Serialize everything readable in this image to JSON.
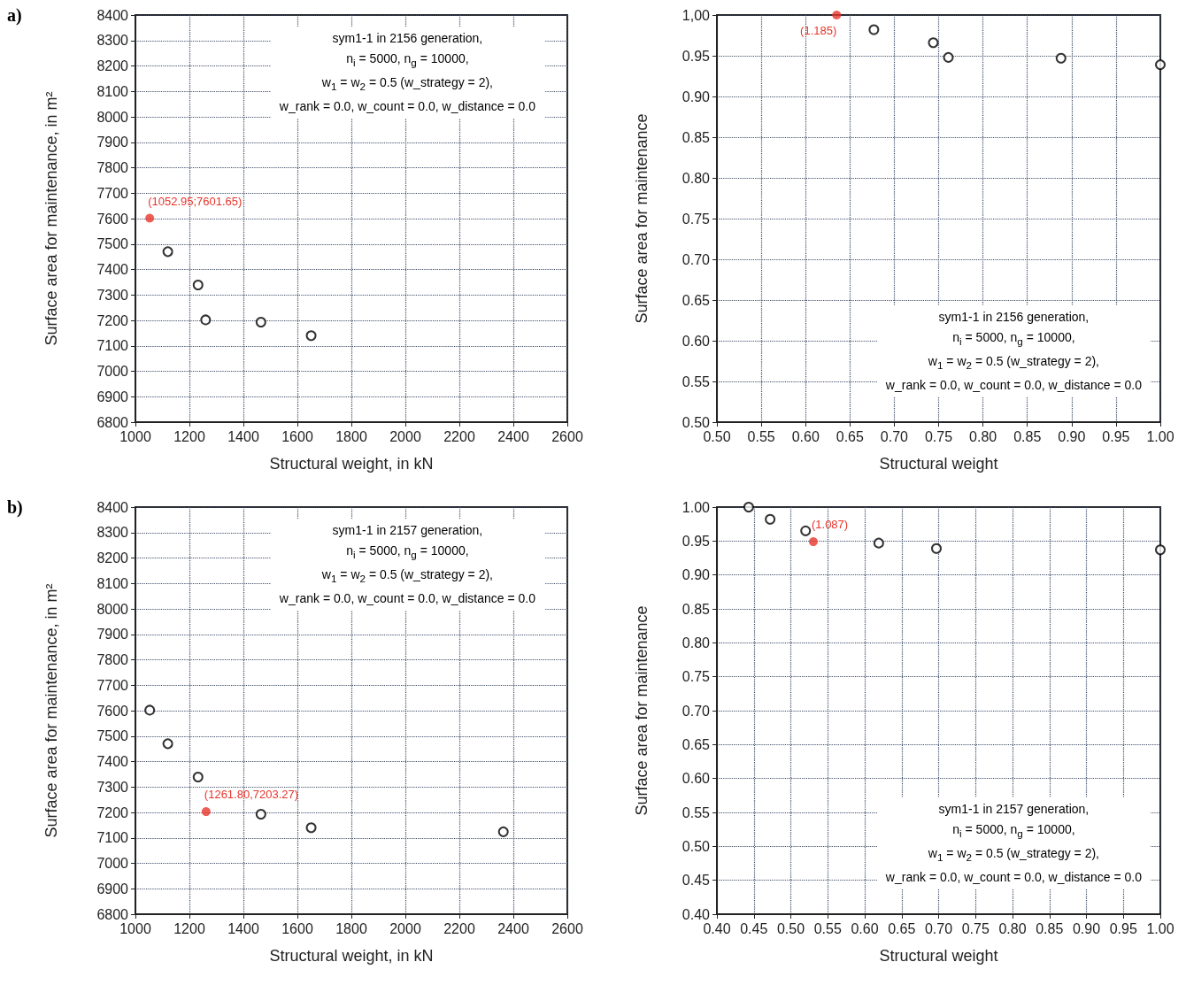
{
  "chart_data": [
    {
      "type": "scatter",
      "xlabel": "Structural weight, in kN",
      "ylabel": "Surface area for maintenance, in m²",
      "grid": true,
      "marker": "circle",
      "annotations": [
        "a)",
        "sym1-1 in 2156 generation,\nn$_{i}$ = 5000, n$_{g}$ = 10000,\nw$_{1}$ = w$_{2}$ = 0.5 (w_strategy = 2),\nw_rank = 0.0, w_count = 0.0, w_distance = 0.0",
        {
          "text": "(1052.95;7601.65)",
          "x": 1052.95,
          "y": 7601.65
        }
      ],
      "series": [
        {
          "color": "#000000",
          "x": [
            1120,
            1232,
            1260,
            1465,
            1651
          ],
          "values": [
            7470,
            7339,
            7202,
            7193,
            7140
          ]
        },
        {
          "color": "#e8342a",
          "x": [
            1052.95
          ],
          "values": [
            7601.65
          ]
        }
      ],
      "xlim": [
        1000,
        2600
      ],
      "xticks": [
        1000,
        1200,
        1400,
        1600,
        1800,
        2000,
        2200,
        2400,
        2600
      ],
      "ylim": [
        6800,
        8400
      ],
      "yticks": [
        6800,
        6900,
        7000,
        7100,
        7200,
        7300,
        7400,
        7500,
        7600,
        7700,
        7800,
        7900,
        8000,
        8100,
        8200,
        8300,
        8400
      ]
    },
    {
      "type": "scatter",
      "xlabel": "Structural weight",
      "ylabel": "Surface area for maintenance",
      "grid": true,
      "marker": "circle",
      "annotations": [
        "sym1-1 in 2156 generation,\nn$_{i}$ = 5000, n$_{g}$ = 10000,\nw$_{1}$ = w$_{2}$ = 0.5 (w_strategy = 2),\nw_rank = 0.0, w_count = 0.0, w_distance = 0.0",
        {
          "text": "(1.185)",
          "x": 0.635,
          "y": 1.0
        }
      ],
      "series": [
        {
          "color": "#000000",
          "x": [
            0.677,
            0.744,
            0.761,
            0.888,
            1.0
          ],
          "values": [
            0.982,
            0.966,
            0.948,
            0.947,
            0.939
          ]
        },
        {
          "color": "#e8342a",
          "x": [
            0.635
          ],
          "values": [
            1.0
          ]
        }
      ],
      "xlim": [
        0.5,
        1.0
      ],
      "xticks": [
        {
          "value": 0.5,
          "label": "0.50"
        },
        {
          "value": 0.55,
          "label": "0.55"
        },
        {
          "value": 0.6,
          "label": "0.60"
        },
        {
          "value": 0.65,
          "label": "0.65"
        },
        {
          "value": 0.7,
          "label": "0.70"
        },
        {
          "value": 0.75,
          "label": "0.75"
        },
        {
          "value": 0.8,
          "label": "0.80"
        },
        {
          "value": 0.85,
          "label": "0.85"
        },
        {
          "value": 0.9,
          "label": "0.90"
        },
        {
          "value": 0.95,
          "label": "0.95"
        },
        {
          "value": 1.0,
          "label": "1.00"
        }
      ],
      "ylim": [
        0.5,
        1.0
      ],
      "yticks": [
        {
          "value": 0.5,
          "label": "0.50"
        },
        {
          "value": 0.55,
          "label": "0.55"
        },
        {
          "value": 0.6,
          "label": "0.60"
        },
        {
          "value": 0.65,
          "label": "0.65"
        },
        {
          "value": 0.7,
          "label": "0.70"
        },
        {
          "value": 0.75,
          "label": "0.75"
        },
        {
          "value": 0.8,
          "label": "0.80"
        },
        {
          "value": 0.85,
          "label": "0.85"
        },
        {
          "value": 0.9,
          "label": "0.90"
        },
        {
          "value": 0.95,
          "label": "0.95"
        },
        {
          "value": 1.0,
          "label": "1,00"
        }
      ]
    },
    {
      "type": "scatter",
      "xlabel": "Structural weight, in kN",
      "ylabel": "Surface area for maintenance, in m²",
      "grid": true,
      "marker": "circle",
      "annotations": [
        "b)",
        "sym1-1 in 2157 generation,\nn$_{i}$ = 5000, n$_{g}$ = 10000,\nw$_{1}$ = w$_{2}$ = 0.5 (w_strategy = 2),\nw_rank = 0.0, w_count = 0.0, w_distance = 0.0",
        {
          "text": "(1261.80,7203.27)",
          "x": 1261.8,
          "y": 7203.27
        }
      ],
      "series": [
        {
          "color": "#000000",
          "x": [
            1053,
            1120,
            1232,
            1465,
            1651,
            2363
          ],
          "values": [
            7602,
            7470,
            7339,
            7193,
            7140,
            7124
          ]
        },
        {
          "color": "#e8342a",
          "x": [
            1261.8
          ],
          "values": [
            7203.27
          ]
        }
      ],
      "xlim": [
        1000,
        2600
      ],
      "xticks": [
        1000,
        1200,
        1400,
        1600,
        1800,
        2000,
        2200,
        2400,
        2600
      ],
      "ylim": [
        6800,
        8400
      ],
      "yticks": [
        6800,
        6900,
        7000,
        7100,
        7200,
        7300,
        7400,
        7500,
        7600,
        7700,
        7800,
        7900,
        8000,
        8100,
        8200,
        8300,
        8400
      ]
    },
    {
      "type": "scatter",
      "xlabel": "Structural weight",
      "ylabel": "Surface area for maintenance",
      "grid": true,
      "marker": "circle",
      "annotations": [
        "sym1-1 in 2157 generation,\nn$_{i}$ = 5000, n$_{g}$ = 10000,\nw$_{1}$ = w$_{2}$ = 0.5 (w_strategy = 2),\nw_rank = 0.0, w_count = 0.0, w_distance = 0.0",
        {
          "text": "(1.087)",
          "x": 0.5305,
          "y": 0.949
        }
      ],
      "series": [
        {
          "color": "#000000",
          "x": [
            0.443,
            0.472,
            0.52,
            0.619,
            0.697,
            1.0
          ],
          "values": [
            1.0,
            0.982,
            0.965,
            0.947,
            0.939,
            0.937
          ]
        },
        {
          "color": "#e8342a",
          "x": [
            0.5305
          ],
          "values": [
            0.949
          ]
        }
      ],
      "xlim": [
        0.4,
        1.0
      ],
      "xticks": [
        {
          "value": 0.4,
          "label": "0.40"
        },
        {
          "value": 0.45,
          "label": "0.45"
        },
        {
          "value": 0.5,
          "label": "0.50"
        },
        {
          "value": 0.55,
          "label": "0.55"
        },
        {
          "value": 0.6,
          "label": "0.60"
        },
        {
          "value": 0.65,
          "label": "0.65"
        },
        {
          "value": 0.7,
          "label": "0.70"
        },
        {
          "value": 0.75,
          "label": "0.75"
        },
        {
          "value": 0.8,
          "label": "0.80"
        },
        {
          "value": 0.85,
          "label": "0.85"
        },
        {
          "value": 0.9,
          "label": "0.90"
        },
        {
          "value": 0.95,
          "label": "0.95"
        },
        {
          "value": 1.0,
          "label": "1.00"
        }
      ],
      "ylim": [
        0.4,
        1.0
      ],
      "yticks": [
        {
          "value": 0.4,
          "label": "0.40"
        },
        {
          "value": 0.45,
          "label": "0.45"
        },
        {
          "value": 0.5,
          "label": "0.50"
        },
        {
          "value": 0.55,
          "label": "0.55"
        },
        {
          "value": 0.6,
          "label": "0.60"
        },
        {
          "value": 0.65,
          "label": "0.65"
        },
        {
          "value": 0.7,
          "label": "0.70"
        },
        {
          "value": 0.75,
          "label": "0.75"
        },
        {
          "value": 0.8,
          "label": "0.80"
        },
        {
          "value": 0.85,
          "label": "0.85"
        },
        {
          "value": 0.9,
          "label": "0.90"
        },
        {
          "value": 0.95,
          "label": "0.95"
        },
        {
          "value": 1.0,
          "label": "1.00"
        }
      ]
    }
  ]
}
